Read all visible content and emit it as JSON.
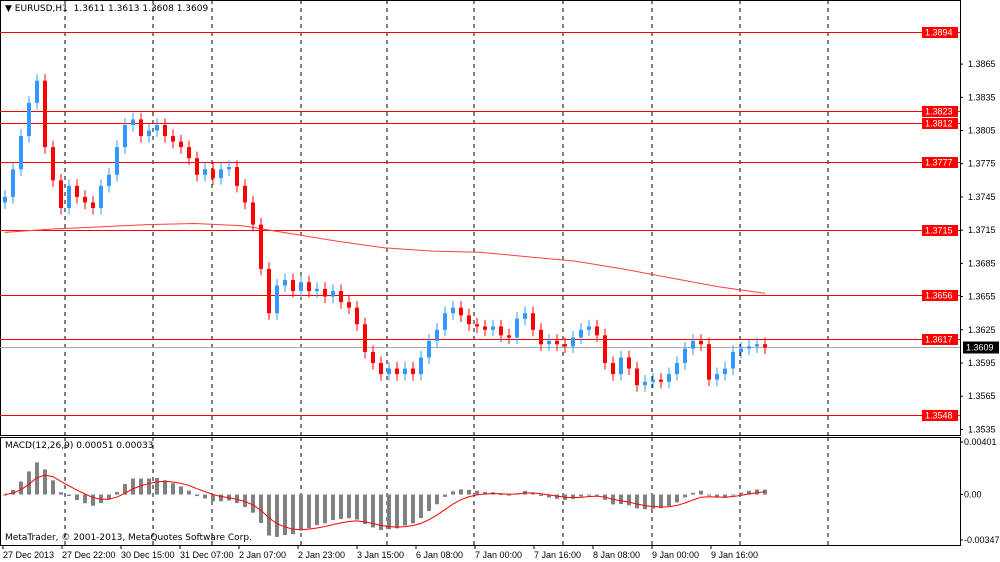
{
  "header": {
    "symbol": "EURUSD,H1",
    "ohlc": "1.3611 1.3613 1.3608 1.3609"
  },
  "indicator": {
    "label": "MACD(12,26,9) 0.00051 0.00033"
  },
  "copyright": "MetaTrader, © 2001-2013, MetaQuotes Software Corp.",
  "colors": {
    "bull": "#3399ff",
    "bear": "#ff0000",
    "level": "#ff0000",
    "ma": "#ff4040",
    "histogram": "#808080",
    "signal": "#ff0000"
  },
  "chart_data": {
    "type": "candlestick",
    "price_axis_ticks": [
      1.3865,
      1.3835,
      1.3805,
      1.3775,
      1.3745,
      1.3715,
      1.3685,
      1.3655,
      1.3625,
      1.3595,
      1.3565,
      1.3535
    ],
    "ylim": [
      1.3525,
      1.3925
    ],
    "levels": [
      1.3894,
      1.3823,
      1.3812,
      1.3777,
      1.3715,
      1.3656,
      1.3617,
      1.3548
    ],
    "current_price": 1.3609,
    "time_labels": [
      "27 Dec 2013",
      "27 Dec 22:00",
      "30 Dec 15:00",
      "31 Dec 07:00",
      "2 Jan 07:00",
      "2 Jan 23:00",
      "3 Jan 15:00",
      "6 Jan 08:00",
      "7 Jan 00:00",
      "7 Jan 16:00",
      "8 Jan 08:00",
      "9 Jan 00:00",
      "9 Jan 16:00"
    ],
    "closes": [
      1.3745,
      1.377,
      1.38,
      1.383,
      1.385,
      1.379,
      1.376,
      1.3735,
      1.3755,
      1.3745,
      1.374,
      1.3735,
      1.3755,
      1.3765,
      1.379,
      1.381,
      1.3815,
      1.38,
      1.3805,
      1.381,
      1.38,
      1.3795,
      1.379,
      1.378,
      1.3765,
      1.377,
      1.3762,
      1.377,
      1.3772,
      1.3755,
      1.374,
      1.372,
      1.368,
      1.364,
      1.3665,
      1.367,
      1.366,
      1.3668,
      1.366,
      1.3662,
      1.3655,
      1.366,
      1.365,
      1.3645,
      1.363,
      1.3605,
      1.3595,
      1.3585,
      1.359,
      1.3585,
      1.359,
      1.3585,
      1.36,
      1.3615,
      1.3625,
      1.364,
      1.3645,
      1.3638,
      1.363,
      1.3628,
      1.3625,
      1.3628,
      1.362,
      1.3618,
      1.3635,
      1.364,
      1.3625,
      1.3612,
      1.3615,
      1.3612,
      1.361,
      1.3618,
      1.3625,
      1.3628,
      1.362,
      1.3595,
      1.3585,
      1.36,
      1.359,
      1.3575,
      1.3578,
      1.358,
      1.3578,
      1.3585,
      1.3595,
      1.3608,
      1.3615,
      1.3612,
      1.358,
      1.3585,
      1.359,
      1.3605,
      1.3608,
      1.361,
      1.3612,
      1.3609
    ],
    "moving_average": [
      1.3713,
      1.3716,
      1.3718,
      1.372,
      1.3721,
      1.3719,
      1.3712,
      1.3705,
      1.3699,
      1.3696,
      1.3695,
      1.3691,
      1.3687,
      1.368,
      1.3672,
      1.3664,
      1.3658
    ],
    "macd_axis_ticks": [
      "0.00401",
      "0.00",
      "-0.00347"
    ],
    "macd_ylim": [
      -0.00347,
      0.00401
    ]
  }
}
